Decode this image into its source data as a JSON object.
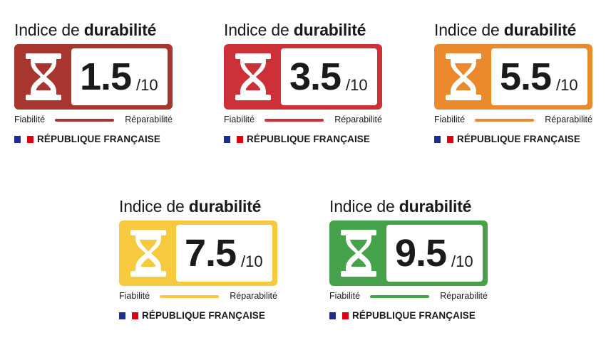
{
  "labels": [
    {
      "title_prefix": "Indice de ",
      "title_bold": "durabilité",
      "score": "1.5",
      "denominator": "/10",
      "left_text": "Fiabilité",
      "right_text": "Réparabilité",
      "footer": "RÉPUBLIQUE FRANÇAISE",
      "color": "#a8362e"
    },
    {
      "title_prefix": "Indice de ",
      "title_bold": "durabilité",
      "score": "3.5",
      "denominator": "/10",
      "left_text": "Fiabilité",
      "right_text": "Réparabilité",
      "footer": "RÉPUBLIQUE FRANÇAISE",
      "color": "#cc3138"
    },
    {
      "title_prefix": "Indice de ",
      "title_bold": "durabilité",
      "score": "5.5",
      "denominator": "/10",
      "left_text": "Fiabilité",
      "right_text": "Réparabilité",
      "footer": "RÉPUBLIQUE FRANÇAISE",
      "color": "#ea8a2c"
    },
    {
      "title_prefix": "Indice de ",
      "title_bold": "durabilité",
      "score": "7.5",
      "denominator": "/10",
      "left_text": "Fiabilité",
      "right_text": "Réparabilité",
      "footer": "RÉPUBLIQUE FRANÇAISE",
      "color": "#f7c93f"
    },
    {
      "title_prefix": "Indice de ",
      "title_bold": "durabilité",
      "score": "9.5",
      "denominator": "/10",
      "left_text": "Fiabilité",
      "right_text": "Réparabilité",
      "footer": "RÉPUBLIQUE FRANÇAISE",
      "color": "#46a24a"
    }
  ],
  "flag_colors": {
    "blue": "#1f2e8c",
    "white": "#ffffff",
    "red": "#e1000f"
  },
  "icon": "hourglass-icon"
}
